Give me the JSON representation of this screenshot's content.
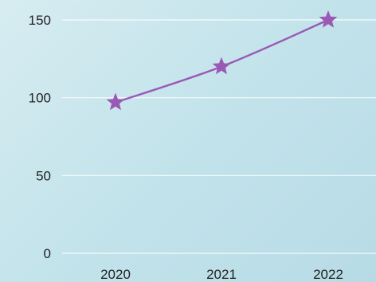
{
  "chart_data": {
    "type": "line",
    "title": "",
    "xlabel": "",
    "ylabel": "",
    "categories": [
      "2020",
      "2021",
      "2022"
    ],
    "series": [
      {
        "values": [
          97,
          120,
          150
        ],
        "color": "#9b59b6",
        "marker": "star"
      }
    ],
    "ylim": [
      0,
      150
    ],
    "yticks": [
      0,
      50,
      100,
      150
    ],
    "grid": true,
    "legend": "none"
  }
}
